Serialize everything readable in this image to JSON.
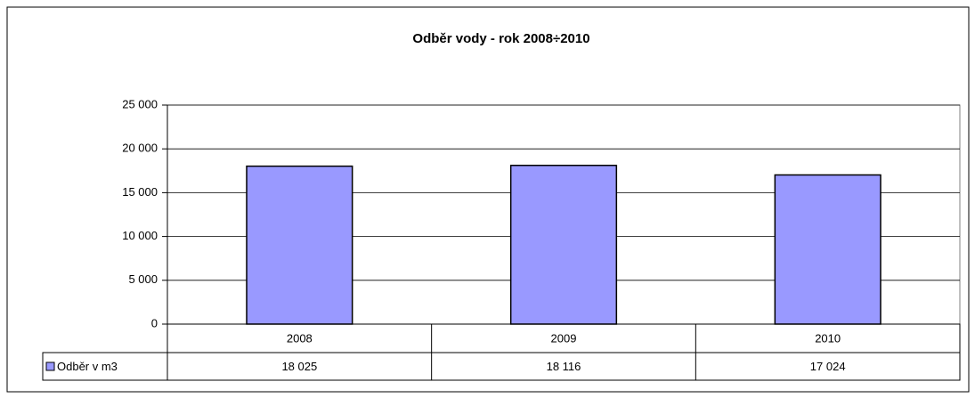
{
  "chart_data": {
    "type": "bar",
    "title": "Odběr vody - rok 2008÷2010",
    "categories": [
      "2008",
      "2009",
      "2010"
    ],
    "series": [
      {
        "name": "Odběr v m3",
        "color": "#9999ff",
        "values": [
          18025,
          18116,
          17024
        ],
        "value_labels": [
          "18 025",
          "18 116",
          "17 024"
        ]
      }
    ],
    "ylim": [
      0,
      25000
    ],
    "yticks": [
      0,
      {
        "value": 5000,
        "label": "5 000"
      },
      {
        "value": 10000,
        "label": "10 000"
      },
      {
        "value": 15000,
        "label": "15 000"
      },
      {
        "value": 20000,
        "label": "20 000"
      },
      {
        "value": 25000,
        "label": "25 000"
      }
    ],
    "grid": true,
    "legend": "data-table"
  }
}
